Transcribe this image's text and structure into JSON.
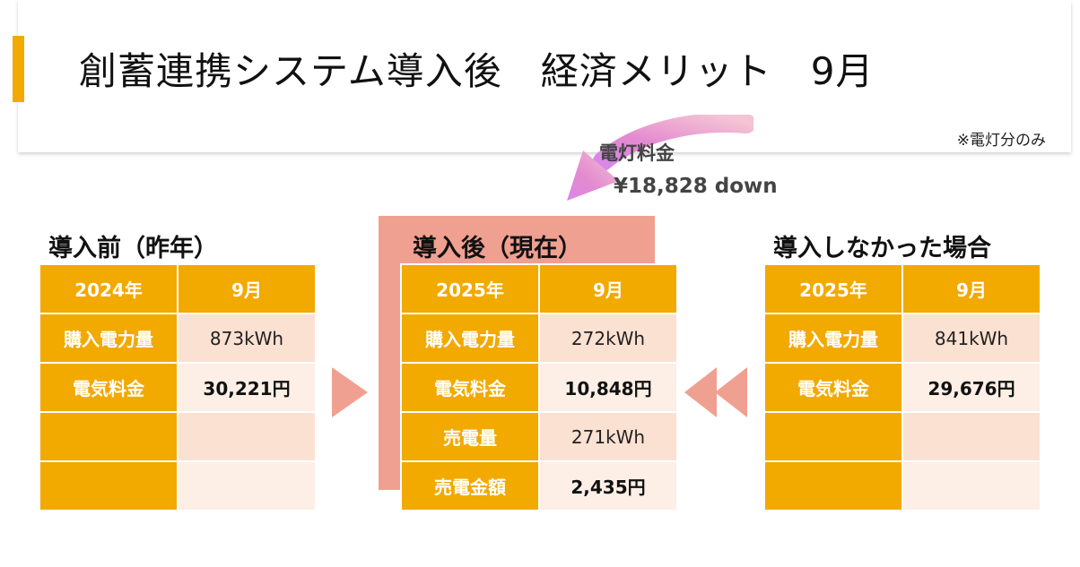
{
  "header": {
    "title": "創蓄連携システム導入後　経済メリット　9月",
    "note": "※電灯分のみ"
  },
  "callout": {
    "label": "電灯料金",
    "value": "¥18,828 down"
  },
  "colors": {
    "accent": "#f2a900",
    "salmon": "#f0a090",
    "cell_light": "#fbe1d2",
    "cell_lighter": "#fdefe6"
  },
  "sections": {
    "before": {
      "title": "導入前（昨年）",
      "col1": "2024年",
      "col2": "9月",
      "rows": [
        {
          "label": "購入電力量",
          "value": "873kWh"
        },
        {
          "label": "電気料金",
          "value": "30,221円"
        },
        {
          "label": "",
          "value": ""
        },
        {
          "label": "",
          "value": ""
        }
      ]
    },
    "after": {
      "title": "導入後（現在）",
      "col1": "2025年",
      "col2": "9月",
      "rows": [
        {
          "label": "購入電力量",
          "value": "272kWh"
        },
        {
          "label": "電気料金",
          "value": "10,848円"
        },
        {
          "label": "売電量",
          "value": "271kWh"
        },
        {
          "label": "売電金額",
          "value": "2,435円"
        }
      ]
    },
    "without": {
      "title": "導入しなかった場合",
      "col1": "2025年",
      "col2": "9月",
      "rows": [
        {
          "label": "購入電力量",
          "value": "841kWh"
        },
        {
          "label": "電気料金",
          "value": "29,676円"
        },
        {
          "label": "",
          "value": ""
        },
        {
          "label": "",
          "value": ""
        }
      ]
    }
  }
}
